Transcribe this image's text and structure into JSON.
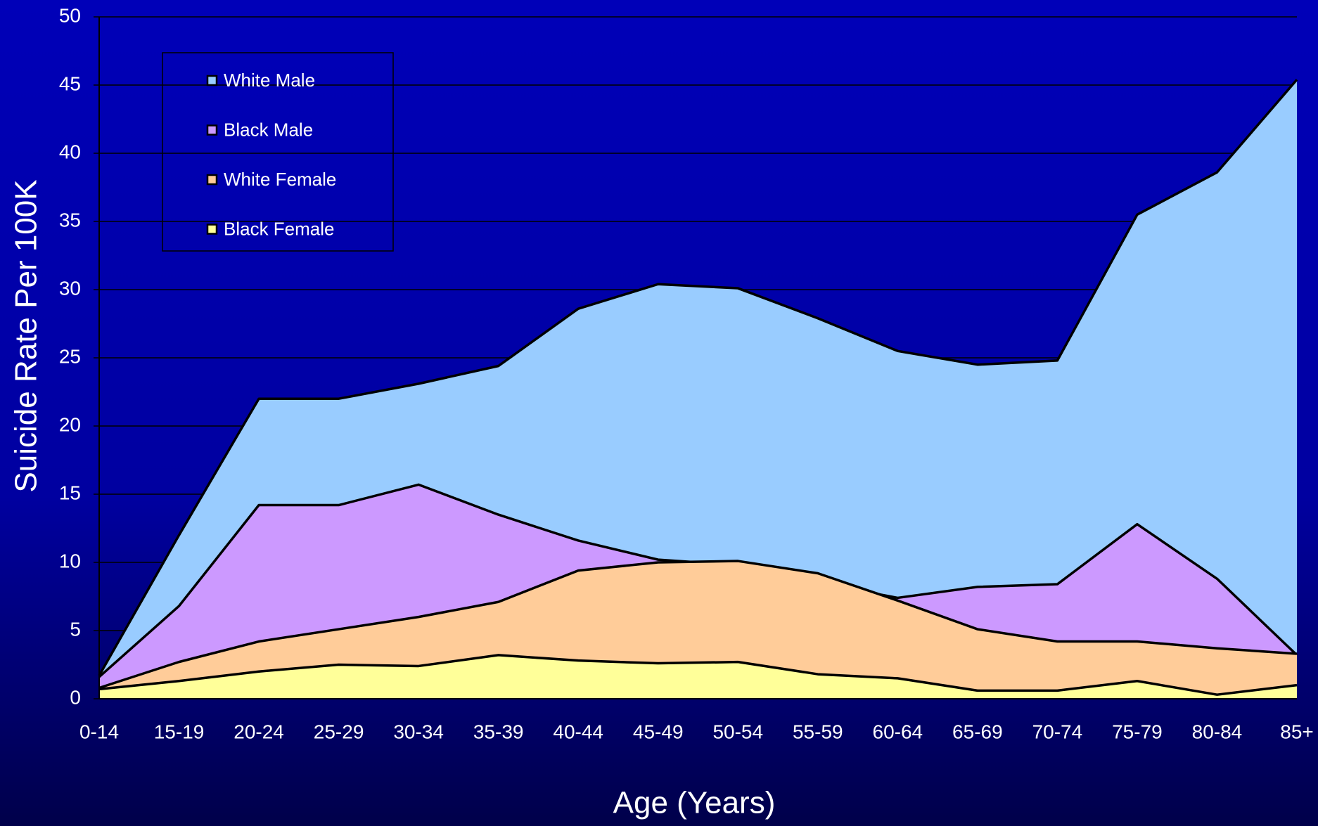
{
  "chart_data": {
    "type": "area",
    "x_label": "Age (Years)",
    "y_label": "Suicide Rate Per 100K",
    "categories": [
      "0-14",
      "15-19",
      "20-24",
      "25-29",
      "30-34",
      "35-39",
      "40-44",
      "45-49",
      "50-54",
      "55-59",
      "60-64",
      "65-69",
      "70-74",
      "75-79",
      "80-84",
      "85+"
    ],
    "series": [
      {
        "name": "White Male",
        "color": "#99ccff",
        "values": [
          1.7,
          12,
          22,
          22,
          23.1,
          24.4,
          28.6,
          30.4,
          30.1,
          27.9,
          25.5,
          24.5,
          24.8,
          35.5,
          38.6,
          45.4
        ]
      },
      {
        "name": "Black Male",
        "color": "#cc99ff",
        "values": [
          1.6,
          6.8,
          14.2,
          14.2,
          15.7,
          13.5,
          11.6,
          10.2,
          9.8,
          8.5,
          7.4,
          8.2,
          8.4,
          12.8,
          8.8,
          3.2
        ]
      },
      {
        "name": "White Female",
        "color": "#ffcc99",
        "values": [
          0.8,
          2.7,
          4.2,
          5.1,
          6.0,
          7.1,
          9.4,
          10.0,
          10.1,
          9.2,
          7.2,
          5.1,
          4.2,
          4.2,
          3.7,
          3.3
        ]
      },
      {
        "name": "Black Female",
        "color": "#ffff99",
        "values": [
          0.7,
          1.3,
          2.0,
          2.5,
          2.4,
          3.2,
          2.8,
          2.6,
          2.7,
          1.8,
          1.5,
          0.6,
          0.6,
          1.3,
          0.3,
          1.0
        ]
      }
    ],
    "ylim": [
      0,
      50
    ],
    "yticks": [
      0,
      5,
      10,
      15,
      20,
      25,
      30,
      35,
      40,
      45,
      50
    ],
    "grid": true,
    "legend": "upper left"
  }
}
